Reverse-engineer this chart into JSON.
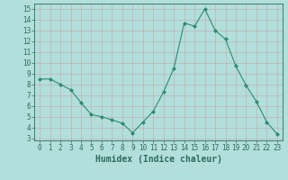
{
  "x": [
    0,
    1,
    2,
    3,
    4,
    5,
    6,
    7,
    8,
    9,
    10,
    11,
    12,
    13,
    14,
    15,
    16,
    17,
    18,
    19,
    20,
    21,
    22,
    23
  ],
  "y": [
    8.5,
    8.5,
    8.0,
    7.5,
    6.3,
    5.2,
    5.0,
    4.7,
    4.4,
    3.5,
    4.5,
    5.5,
    7.3,
    9.5,
    13.7,
    13.4,
    15.0,
    13.0,
    12.2,
    9.7,
    7.9,
    6.4,
    4.5,
    3.4
  ],
  "line_color": "#2e8b72",
  "marker": "D",
  "marker_size": 2,
  "bg_color": "#b2dfdb",
  "grid_color": "#c8e8e4",
  "xlabel": "Humidex (Indice chaleur)",
  "xlim": [
    -0.5,
    23.5
  ],
  "ylim": [
    2.8,
    15.5
  ],
  "xticks": [
    0,
    1,
    2,
    3,
    4,
    5,
    6,
    7,
    8,
    9,
    10,
    11,
    12,
    13,
    14,
    15,
    16,
    17,
    18,
    19,
    20,
    21,
    22,
    23
  ],
  "yticks": [
    3,
    4,
    5,
    6,
    7,
    8,
    9,
    10,
    11,
    12,
    13,
    14,
    15
  ],
  "tick_color": "#2e6b5e",
  "label_fontsize": 7,
  "tick_fontsize": 5.5,
  "font_family": "monospace"
}
